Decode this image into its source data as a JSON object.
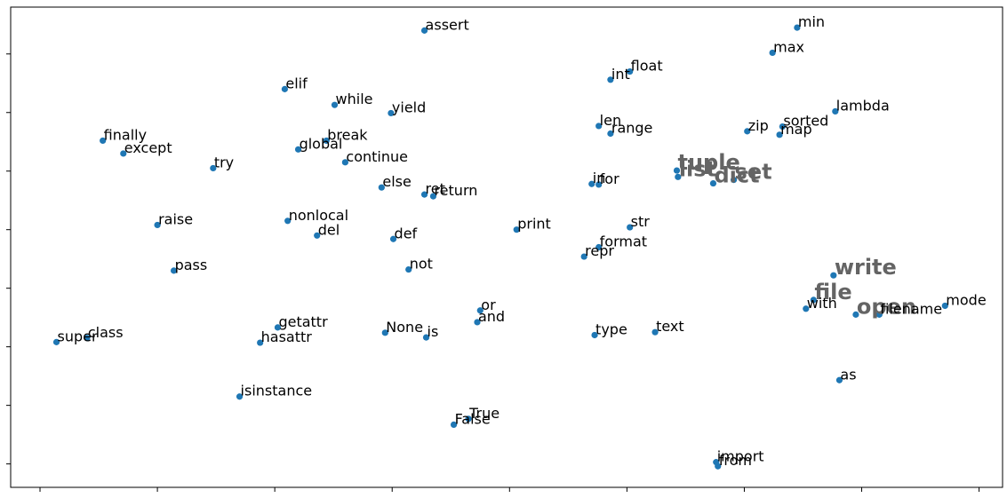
{
  "chart_data": {
    "type": "scatter",
    "title": "",
    "xlabel": "",
    "ylabel": "",
    "xlim": [
      -0.5,
      16.4
    ],
    "ylim": [
      -0.4,
      7.8
    ],
    "x_ticks": [
      0,
      2,
      4,
      6,
      8,
      10,
      12,
      14,
      16
    ],
    "y_ticks": [
      0,
      1,
      2,
      3,
      4,
      5,
      6,
      7
    ],
    "grid": false,
    "legend": "none",
    "marker_color": "#1f77b4",
    "highlight_label_color": "#646464",
    "points": [
      {
        "label": "assert",
        "x": 6.55,
        "y": 7.4
      },
      {
        "label": "min",
        "x": 12.9,
        "y": 7.45
      },
      {
        "label": "max",
        "x": 12.48,
        "y": 7.02
      },
      {
        "label": "float",
        "x": 10.05,
        "y": 6.7
      },
      {
        "label": "int",
        "x": 9.72,
        "y": 6.56
      },
      {
        "label": "elif",
        "x": 4.17,
        "y": 6.4
      },
      {
        "label": "while",
        "x": 5.02,
        "y": 6.13
      },
      {
        "label": "yield",
        "x": 5.98,
        "y": 5.99
      },
      {
        "label": "lambda",
        "x": 13.55,
        "y": 6.02
      },
      {
        "label": "len",
        "x": 9.52,
        "y": 5.77
      },
      {
        "label": "range",
        "x": 9.72,
        "y": 5.64
      },
      {
        "label": "zip",
        "x": 12.05,
        "y": 5.68
      },
      {
        "label": "sorted",
        "x": 12.65,
        "y": 5.76
      },
      {
        "label": "map",
        "x": 12.6,
        "y": 5.62
      },
      {
        "label": "finally",
        "x": 1.07,
        "y": 5.52
      },
      {
        "label": "except",
        "x": 1.42,
        "y": 5.3
      },
      {
        "label": "break",
        "x": 4.88,
        "y": 5.52
      },
      {
        "label": "global",
        "x": 4.4,
        "y": 5.37
      },
      {
        "label": "continue",
        "x": 5.2,
        "y": 5.15
      },
      {
        "label": "try",
        "x": 2.95,
        "y": 5.05
      },
      {
        "label": "tuple",
        "x": 10.85,
        "y": 5.01
      },
      {
        "label": "list",
        "x": 10.87,
        "y": 4.9
      },
      {
        "label": "dict",
        "x": 11.47,
        "y": 4.79
      },
      {
        "label": "set",
        "x": 11.82,
        "y": 4.85
      },
      {
        "label": "in",
        "x": 9.4,
        "y": 4.78
      },
      {
        "label": "for",
        "x": 9.52,
        "y": 4.77
      },
      {
        "label": "else",
        "x": 5.82,
        "y": 4.72
      },
      {
        "label": "raise",
        "x": 2.0,
        "y": 4.08
      },
      {
        "label": "nonlocal",
        "x": 4.22,
        "y": 4.15
      },
      {
        "label": "ret",
        "x": 6.55,
        "y": 4.6
      },
      {
        "label": "return",
        "x": 6.7,
        "y": 4.57
      },
      {
        "label": "del",
        "x": 4.72,
        "y": 3.9
      },
      {
        "label": "def",
        "x": 6.02,
        "y": 3.84
      },
      {
        "label": "print",
        "x": 8.12,
        "y": 4.0
      },
      {
        "label": "str",
        "x": 10.05,
        "y": 4.04
      },
      {
        "label": "format",
        "x": 9.52,
        "y": 3.7
      },
      {
        "label": "repr",
        "x": 9.27,
        "y": 3.54
      },
      {
        "label": "pass",
        "x": 2.28,
        "y": 3.3
      },
      {
        "label": "not",
        "x": 6.28,
        "y": 3.32
      },
      {
        "label": "write",
        "x": 13.52,
        "y": 3.22
      },
      {
        "label": "file",
        "x": 13.18,
        "y": 2.8
      },
      {
        "label": "with",
        "x": 13.05,
        "y": 2.65
      },
      {
        "label": "open",
        "x": 13.9,
        "y": 2.55
      },
      {
        "label": "filename",
        "x": 14.3,
        "y": 2.55
      },
      {
        "label": "mode",
        "x": 15.42,
        "y": 2.7
      },
      {
        "label": "or",
        "x": 7.5,
        "y": 2.62
      },
      {
        "label": "and",
        "x": 7.45,
        "y": 2.42
      },
      {
        "label": "getattr",
        "x": 4.05,
        "y": 2.33
      },
      {
        "label": "None",
        "x": 5.88,
        "y": 2.24
      },
      {
        "label": "is",
        "x": 6.58,
        "y": 2.16
      },
      {
        "label": "hasattr",
        "x": 3.75,
        "y": 2.07
      },
      {
        "label": "type",
        "x": 9.45,
        "y": 2.2
      },
      {
        "label": "text",
        "x": 10.48,
        "y": 2.25
      },
      {
        "label": "super",
        "x": 0.28,
        "y": 2.08
      },
      {
        "label": "class",
        "x": 0.8,
        "y": 2.15
      },
      {
        "label": "as",
        "x": 13.62,
        "y": 1.43
      },
      {
        "label": "isinstance",
        "x": 3.4,
        "y": 1.15
      },
      {
        "label": "True",
        "x": 7.3,
        "y": 0.77
      },
      {
        "label": "False",
        "x": 7.05,
        "y": 0.67
      },
      {
        "label": "import",
        "x": 11.52,
        "y": 0.03
      },
      {
        "label": "from",
        "x": 11.55,
        "y": -0.04
      }
    ],
    "label_offsets": {
      "ret": {
        "dx": 0,
        "dy": 0
      }
    },
    "highlighted": [
      "tuple",
      "list",
      "dict",
      "set",
      "write",
      "file",
      "open"
    ]
  }
}
